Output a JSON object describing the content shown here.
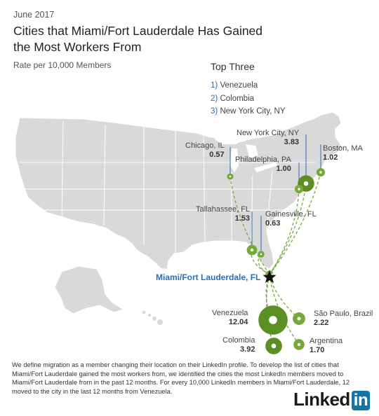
{
  "header": {
    "date": "June 2017",
    "title": "Cities that Miami/Fort Lauderdale Has Gained the Most Workers From",
    "subtitle": "Rate per 10,000 Members"
  },
  "top_three": {
    "heading": "Top Three",
    "items": [
      {
        "num": "1)",
        "name": "Venezuela"
      },
      {
        "num": "2)",
        "name": "Colombia"
      },
      {
        "num": "3)",
        "name": "New York City, NY"
      }
    ]
  },
  "destination": {
    "name": "Miami/Fort Lauderdale, FL"
  },
  "origins": [
    {
      "name": "Chicago, IL",
      "value": "0.57"
    },
    {
      "name": "New York City, NY",
      "value": "3.83"
    },
    {
      "name": "Boston, MA",
      "value": "1.02"
    },
    {
      "name": "Philadelphia, PA",
      "value": "1.00"
    },
    {
      "name": "Tallahassee, FL",
      "value": "1.53"
    },
    {
      "name": "Gainesville, FL",
      "value": "0.63"
    },
    {
      "name": "Venezuela",
      "value": "12.04"
    },
    {
      "name": "São Paulo, Brazil",
      "value": "2.22"
    },
    {
      "name": "Colombia",
      "value": "3.92"
    },
    {
      "name": "Argentina",
      "value": "1.70"
    }
  ],
  "footnote": "We define migration as a member changing their location on their LinkedIn profile. To develop the list of cities that Miami/Fort Lauderdale gained the most workers from, we identified the cities the most LinkedIn members moved to Miami/Fort Lauderdale from in the past 12 months. For every 10,000 LinkedIn members in Miami/Fort Lauderdale, 12 moved to the city in the last 12 months from Venezuela.",
  "logo": {
    "text": "Linked",
    "badge": "in"
  },
  "colors": {
    "land": "#d9d9d9",
    "border": "#ffffff",
    "bubble": "#76a83a",
    "bubble_dark": "#5b8f24",
    "leader": "#2a6fb5",
    "accent": "#2a6fb5"
  }
}
